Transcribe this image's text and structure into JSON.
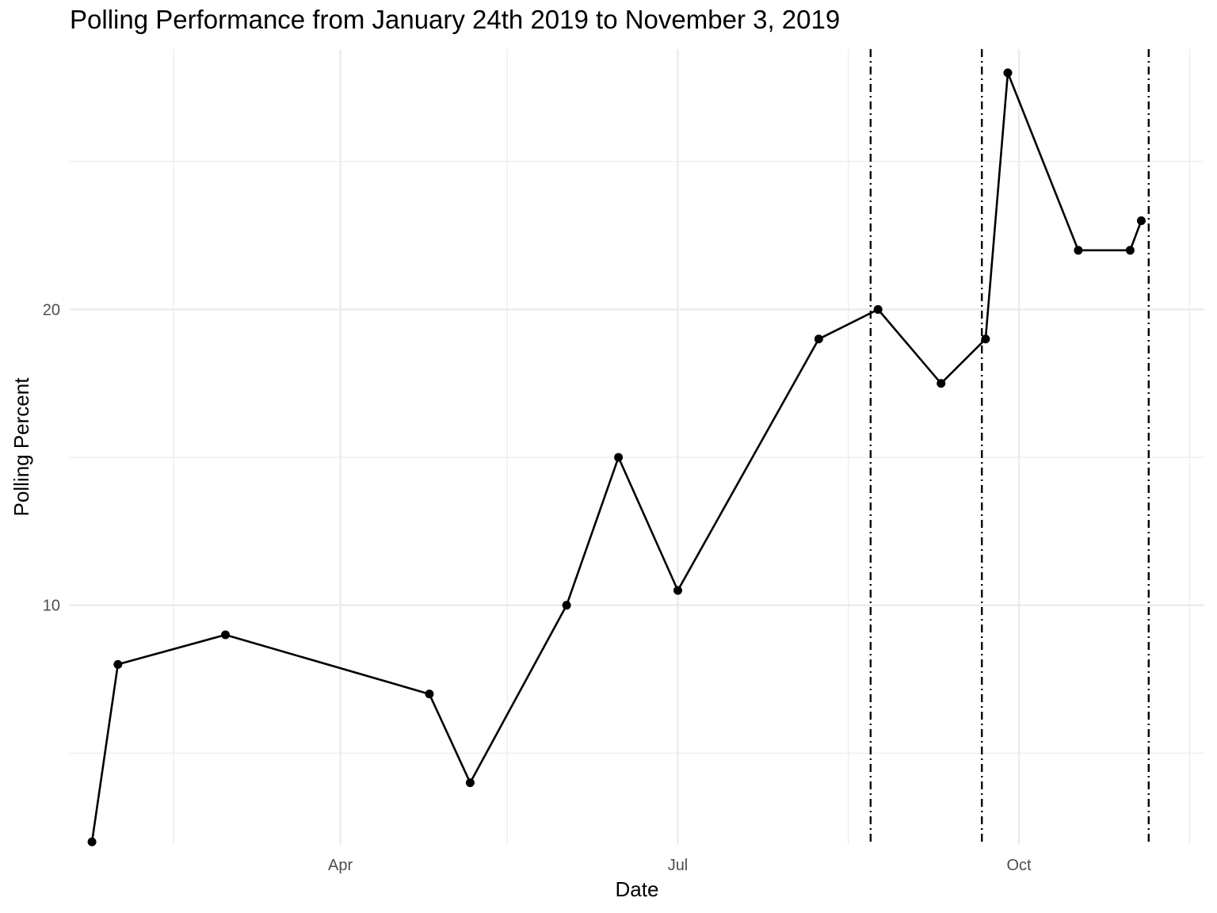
{
  "chart_data": {
    "type": "line",
    "title": "Polling Performance from January 24th 2019 to November 3, 2019",
    "xlabel": "Date",
    "ylabel": "Polling Percent",
    "x_ticks": [
      {
        "date": "2019-04-01",
        "label": "Apr"
      },
      {
        "date": "2019-07-01",
        "label": "Jul"
      },
      {
        "date": "2019-10-01",
        "label": "Oct"
      }
    ],
    "x_minor_ticks": [
      "2019-02-15",
      "2019-05-16",
      "2019-08-16",
      "2019-11-16"
    ],
    "y_ticks": [
      {
        "value": 10,
        "label": "10"
      },
      {
        "value": 20,
        "label": "20"
      }
    ],
    "y_minor_ticks": [
      5,
      15,
      25
    ],
    "xlim": [
      "2019-01-18",
      "2019-11-20"
    ],
    "ylim": [
      1.9,
      28.8
    ],
    "grid": true,
    "series": [
      {
        "points": [
          {
            "x": "2019-01-24",
            "y": 2
          },
          {
            "x": "2019-01-31",
            "y": 8
          },
          {
            "x": "2019-03-01",
            "y": 9
          },
          {
            "x": "2019-04-25",
            "y": 7
          },
          {
            "x": "2019-05-06",
            "y": 4
          },
          {
            "x": "2019-06-01",
            "y": 10
          },
          {
            "x": "2019-06-15",
            "y": 15
          },
          {
            "x": "2019-07-01",
            "y": 10.5
          },
          {
            "x": "2019-08-08",
            "y": 19
          },
          {
            "x": "2019-08-24",
            "y": 20
          },
          {
            "x": "2019-09-10",
            "y": 17.5
          },
          {
            "x": "2019-09-22",
            "y": 19
          },
          {
            "x": "2019-09-28",
            "y": 28
          },
          {
            "x": "2019-10-17",
            "y": 22
          },
          {
            "x": "2019-10-31",
            "y": 22
          },
          {
            "x": "2019-11-03",
            "y": 23
          }
        ]
      }
    ],
    "vertical_lines": [
      "2019-08-22",
      "2019-09-21",
      "2019-11-05"
    ],
    "vertical_line_style": "dot-dash",
    "line_color": "#000000",
    "grid_color": "#ebebeb"
  }
}
